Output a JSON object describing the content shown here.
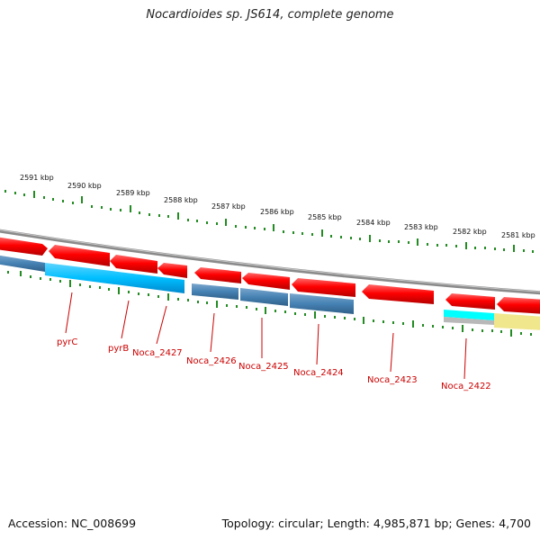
{
  "title": "Nocardioides sp. JS614, complete genome",
  "footer": {
    "accession": "Accession: NC_008699",
    "topology": "Topology: circular; Length: 4,985,871 bp; Genes: 4,700"
  },
  "kbp_labels": [
    "2591 kbp",
    "2590 kbp",
    "2589 kbp",
    "2588 kbp",
    "2587 kbp",
    "2586 kbp",
    "2585 kbp",
    "2584 kbp",
    "2583 kbp",
    "2582 kbp",
    "2581 kbp"
  ],
  "gene_labels": [
    "pyrC",
    "pyrB",
    "Noca_2427",
    "Noca_2426",
    "Noca_2425",
    "Noca_2424",
    "Noca_2423",
    "Noca_2422"
  ],
  "colors": {
    "backbone": "#8a8a8a",
    "gene_arrow": "#ff0000",
    "cds_cyan": "#00bfff",
    "cds_steel": "#4682b4",
    "feature_aqua": "#00ffff",
    "feature_khaki": "#f0e68c",
    "scale_ticks": "#228b22",
    "label_text": "#cc0000"
  }
}
